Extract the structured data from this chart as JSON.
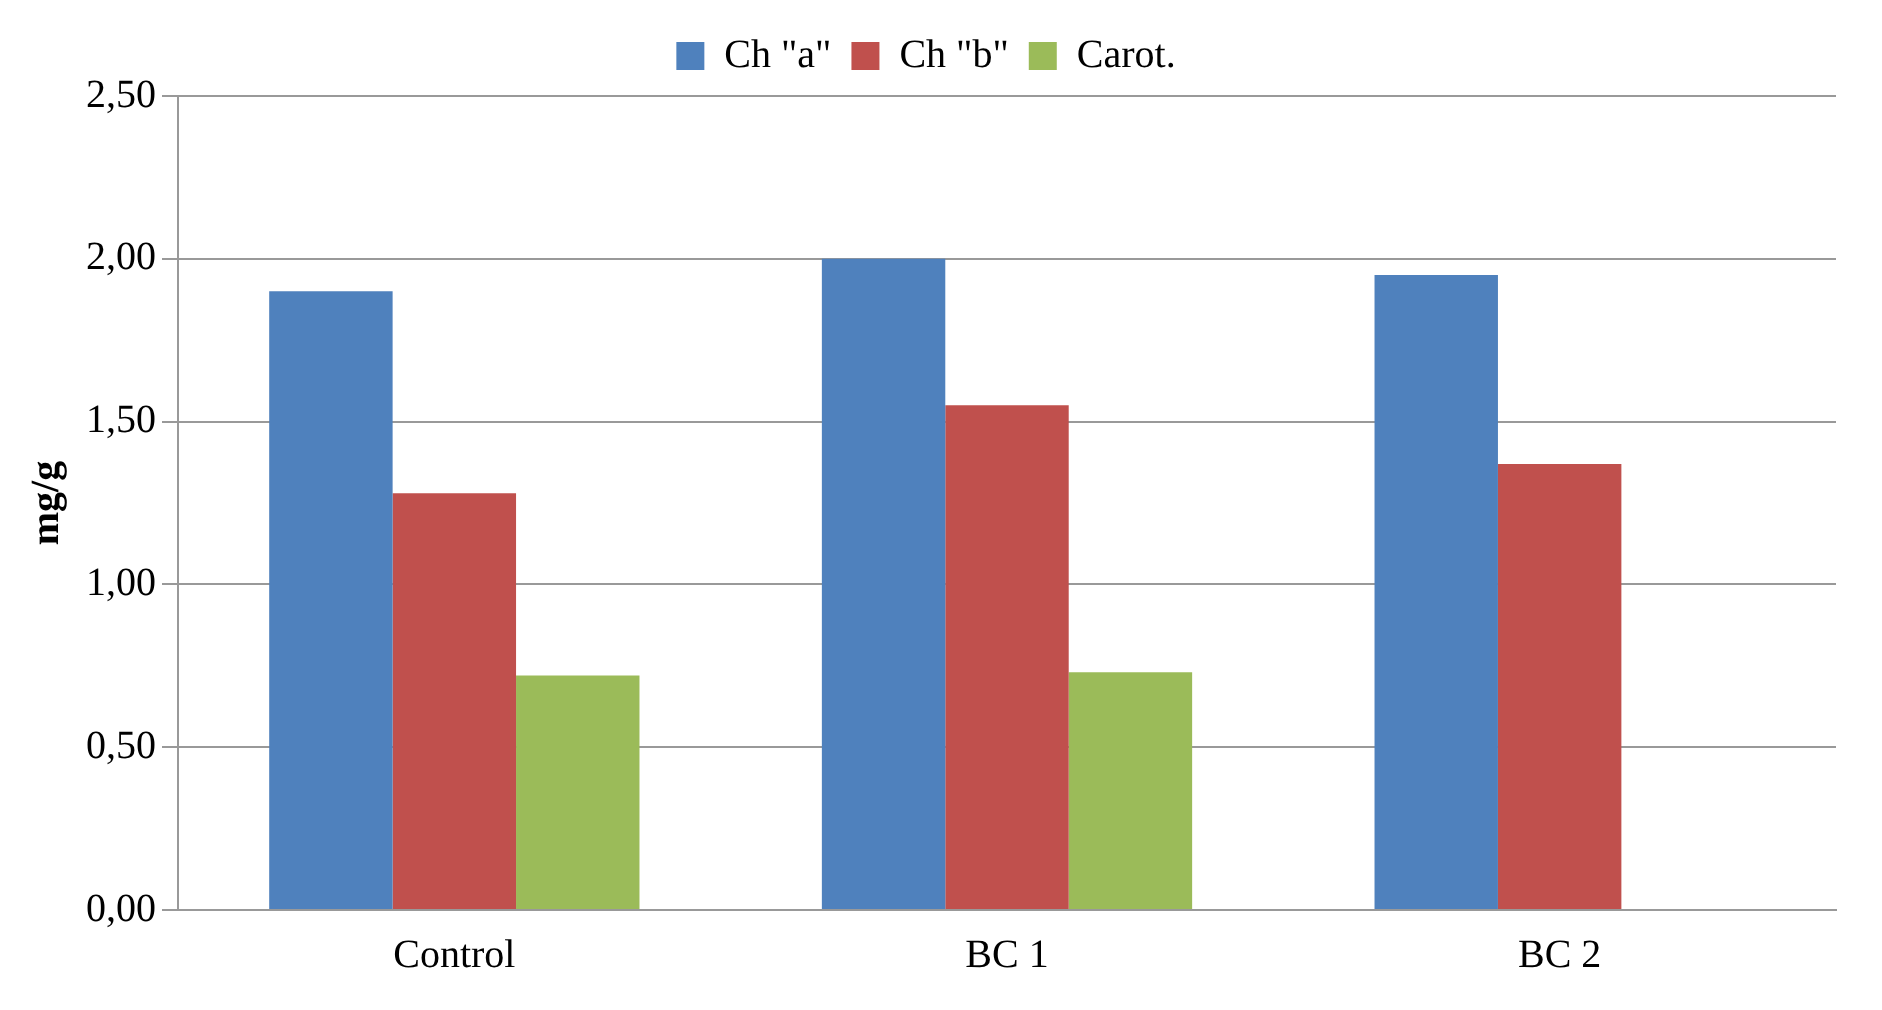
{
  "chart_data": {
    "type": "bar",
    "ylabel": "mg/g",
    "categories": [
      "Control",
      "BC 1",
      "BC 2"
    ],
    "series": [
      {
        "name": "Ch \"a\"",
        "color": "#4f81bd",
        "values": [
          1.9,
          2.0,
          1.95
        ]
      },
      {
        "name": "Ch \"b\"",
        "color": "#c0504d",
        "values": [
          1.28,
          1.55,
          1.37
        ]
      },
      {
        "name": "Carot.",
        "color": "#9bbb59",
        "values": [
          0.72,
          0.73,
          null
        ]
      }
    ],
    "ylim": [
      0,
      2.5
    ],
    "yticks": [
      {
        "value": 0,
        "label": "0,00"
      },
      {
        "value": 0.5,
        "label": "0,50"
      },
      {
        "value": 1,
        "label": "1,00"
      },
      {
        "value": 1.5,
        "label": "1,50"
      },
      {
        "value": 2,
        "label": "2,00"
      },
      {
        "value": 2.5,
        "label": "2,50"
      }
    ],
    "grid": "y",
    "legend": "top"
  }
}
